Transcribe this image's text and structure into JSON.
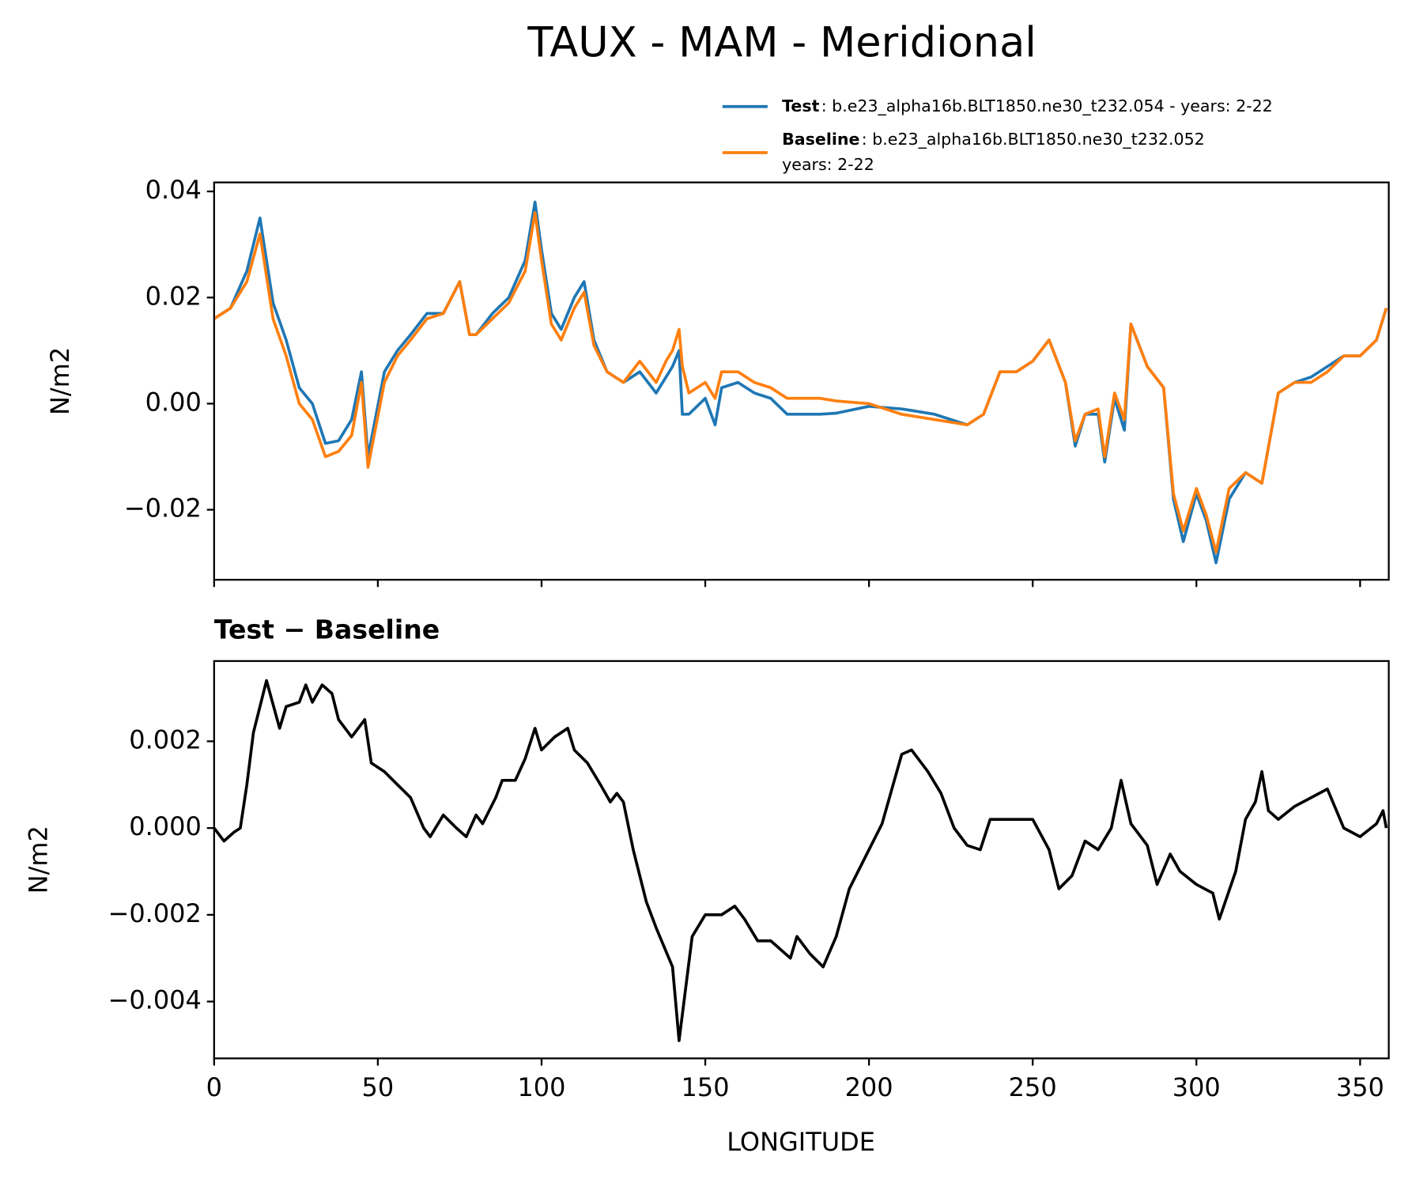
{
  "chart_data": [
    {
      "type": "line",
      "title": "TAUX - MAM - Meridional",
      "ylabel": "N/m2",
      "x": [
        0,
        5,
        10,
        14,
        18,
        22,
        26,
        30,
        34,
        38,
        42,
        45,
        47,
        52,
        56,
        60,
        65,
        70,
        75,
        78,
        80,
        85,
        90,
        95,
        98,
        100,
        103,
        106,
        110,
        113,
        116,
        120,
        125,
        130,
        135,
        138,
        140,
        142,
        143,
        145,
        150,
        153,
        155,
        160,
        165,
        170,
        175,
        180,
        185,
        190,
        200,
        210,
        220,
        230,
        235,
        240,
        245,
        250,
        255,
        260,
        263,
        266,
        270,
        272,
        275,
        278,
        280,
        285,
        290,
        293,
        296,
        300,
        303,
        306,
        310,
        315,
        320,
        325,
        330,
        335,
        340,
        345,
        350,
        355,
        358
      ],
      "series": [
        {
          "name": "Test",
          "description": [
            ": b.e23_alpha16b.BLT1850.ne30_t232.054 - years: 2-22"
          ],
          "color": "#1f77b4",
          "values": [
            0.016,
            0.018,
            0.025,
            0.035,
            0.019,
            0.012,
            0.003,
            0.0,
            -0.0075,
            -0.007,
            -0.003,
            0.006,
            -0.01,
            0.006,
            0.01,
            0.013,
            0.017,
            0.017,
            0.023,
            0.013,
            0.013,
            0.017,
            0.02,
            0.027,
            0.038,
            0.029,
            0.017,
            0.014,
            0.02,
            0.023,
            0.012,
            0.006,
            0.004,
            0.006,
            0.002,
            0.005,
            0.007,
            0.01,
            -0.002,
            -0.002,
            0.001,
            -0.004,
            0.003,
            0.004,
            0.002,
            0.001,
            -0.002,
            -0.002,
            -0.002,
            -0.0018,
            -0.0005,
            -0.001,
            -0.002,
            -0.004,
            -0.002,
            0.006,
            0.006,
            0.008,
            0.012,
            0.004,
            -0.008,
            -0.002,
            -0.002,
            -0.011,
            0.001,
            -0.005,
            0.015,
            0.007,
            0.003,
            -0.018,
            -0.026,
            -0.017,
            -0.022,
            -0.03,
            -0.018,
            -0.013,
            -0.015,
            0.002,
            0.004,
            0.005,
            0.007,
            0.009,
            0.009,
            0.012,
            0.018
          ]
        },
        {
          "name": "Baseline",
          "description": [
            ": b.e23_alpha16b.BLT1850.ne30_t232.052",
            "years: 2-22"
          ],
          "color": "#ff7f0e",
          "values": [
            0.016,
            0.018,
            0.023,
            0.032,
            0.016,
            0.009,
            0.0,
            -0.003,
            -0.01,
            -0.009,
            -0.006,
            0.004,
            -0.012,
            0.004,
            0.009,
            0.012,
            0.016,
            0.017,
            0.023,
            0.013,
            0.013,
            0.016,
            0.019,
            0.025,
            0.036,
            0.027,
            0.015,
            0.012,
            0.018,
            0.021,
            0.011,
            0.006,
            0.004,
            0.008,
            0.004,
            0.008,
            0.01,
            0.014,
            0.007,
            0.002,
            0.004,
            0.001,
            0.006,
            0.006,
            0.004,
            0.003,
            0.001,
            0.001,
            0.001,
            0.0005,
            0.0,
            -0.002,
            -0.003,
            -0.004,
            -0.002,
            0.006,
            0.006,
            0.008,
            0.012,
            0.004,
            -0.007,
            -0.002,
            -0.001,
            -0.01,
            0.002,
            -0.003,
            0.015,
            0.007,
            0.003,
            -0.017,
            -0.024,
            -0.016,
            -0.021,
            -0.028,
            -0.016,
            -0.013,
            -0.015,
            0.002,
            0.004,
            0.004,
            0.006,
            0.009,
            0.009,
            0.012,
            0.018
          ]
        }
      ],
      "xlim": [
        0,
        358.75
      ],
      "xticks": [
        0,
        50,
        100,
        150,
        200,
        250,
        300,
        350
      ],
      "xtick_labels": false,
      "ylim": [
        -0.0332,
        0.0417
      ],
      "yticks": [
        {
          "value": -0.02,
          "label": "−0.02"
        },
        {
          "value": 0,
          "label": "0.00"
        },
        0.02,
        0.04
      ]
    },
    {
      "type": "line",
      "title": "Test − Baseline",
      "ylabel": "N/m2",
      "xlabel": "LONGITUDE",
      "x": [
        0,
        3,
        6,
        8,
        10,
        12,
        16,
        20,
        22,
        26,
        28,
        30,
        33,
        36,
        38,
        42,
        46,
        48,
        52,
        56,
        60,
        64,
        66,
        70,
        74,
        77,
        80,
        82,
        86,
        88,
        92,
        95,
        98,
        100,
        104,
        108,
        110,
        114,
        118,
        121,
        123,
        125,
        128,
        132,
        135,
        140,
        142,
        146,
        150,
        155,
        159,
        162,
        166,
        170,
        176,
        178,
        182,
        186,
        190,
        194,
        198,
        204,
        210,
        213,
        218,
        222,
        226,
        230,
        234,
        237,
        240,
        245,
        250,
        255,
        258,
        262,
        266,
        270,
        274,
        277,
        280,
        285,
        288,
        292,
        295,
        300,
        305,
        307,
        312,
        315,
        318,
        320,
        322,
        325,
        330,
        335,
        340,
        345,
        350,
        355,
        357,
        358
      ],
      "series": [
        {
          "color": "#000000",
          "values": [
            0.0,
            -0.0003,
            -0.0001,
            0.0,
            0.001,
            0.0022,
            0.0034,
            0.0023,
            0.0028,
            0.0029,
            0.0033,
            0.0029,
            0.0033,
            0.0031,
            0.0025,
            0.0021,
            0.0025,
            0.0015,
            0.0013,
            0.001,
            0.0007,
            0.0,
            -0.0002,
            0.0003,
            0.0,
            -0.0002,
            0.0003,
            0.0001,
            0.0007,
            0.0011,
            0.0011,
            0.0016,
            0.0023,
            0.0018,
            0.0021,
            0.0023,
            0.0018,
            0.0015,
            0.001,
            0.0006,
            0.0008,
            0.0006,
            -0.0005,
            -0.0017,
            -0.0023,
            -0.0032,
            -0.0049,
            -0.0025,
            -0.002,
            -0.002,
            -0.0018,
            -0.0021,
            -0.0026,
            -0.0026,
            -0.003,
            -0.0025,
            -0.0029,
            -0.0032,
            -0.0025,
            -0.0014,
            -0.0008,
            0.0001,
            0.0017,
            0.0018,
            0.0013,
            0.0008,
            0.0,
            -0.0004,
            -0.0005,
            0.0002,
            0.0002,
            0.0002,
            0.0002,
            -0.0005,
            -0.0014,
            -0.0011,
            -0.0003,
            -0.0005,
            0.0,
            0.0011,
            0.0001,
            -0.0004,
            -0.0013,
            -0.0006,
            -0.001,
            -0.0013,
            -0.0015,
            -0.0021,
            -0.001,
            0.0002,
            0.0006,
            0.0013,
            0.0004,
            0.0002,
            0.0005,
            0.0007,
            0.0009,
            0.0,
            -0.0002,
            0.0001,
            0.0004,
            0.0
          ]
        }
      ],
      "xlim": [
        0,
        358.75
      ],
      "xticks": [
        0,
        50,
        100,
        150,
        200,
        250,
        300,
        350
      ],
      "xtick_labels": true,
      "ylim": [
        -0.00531,
        0.00385
      ],
      "yticks": [
        {
          "value": -0.004,
          "label": "−0.004"
        },
        {
          "value": -0.002,
          "label": "−0.002"
        },
        {
          "value": 0,
          "label": "0.000"
        },
        0.002
      ]
    }
  ]
}
